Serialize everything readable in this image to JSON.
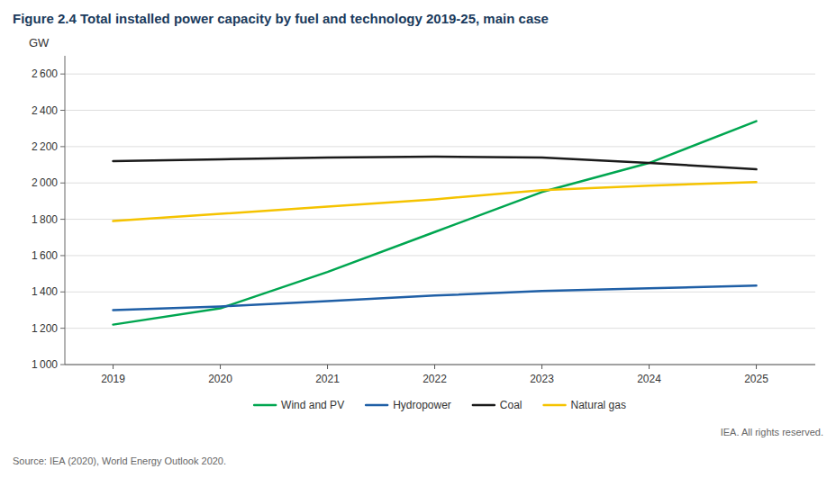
{
  "chart_data": {
    "type": "line",
    "title": "Figure 2.4   Total installed power capacity by fuel and technology 2019-25, main case",
    "y_label": "GW",
    "x": [
      2019,
      2020,
      2021,
      2022,
      2023,
      2024,
      2025
    ],
    "xlim": [
      2018.55,
      2025.55
    ],
    "xticks": [
      2019,
      2020,
      2021,
      2022,
      2023,
      2024,
      2025
    ],
    "ylim": [
      1000,
      2700
    ],
    "yticks": [
      {
        "value": 1000,
        "label": "1 000"
      },
      {
        "value": 1200,
        "label": "1 200"
      },
      {
        "value": 1400,
        "label": "1 400"
      },
      {
        "value": 1600,
        "label": "1 600"
      },
      {
        "value": 1800,
        "label": "1 800"
      },
      {
        "value": 2000,
        "label": "2 000"
      },
      {
        "value": 2200,
        "label": "2 200"
      },
      {
        "value": 2400,
        "label": "2 400"
      },
      {
        "value": 2600,
        "label": "2 600"
      }
    ],
    "grid": true,
    "legend": "bottom",
    "series": [
      {
        "name": "Wind and PV",
        "color": "#00A650",
        "values": [
          1220,
          1310,
          1510,
          1730,
          1950,
          2110,
          2340
        ]
      },
      {
        "name": "Hydropower",
        "color": "#1F5FA6",
        "values": [
          1300,
          1320,
          1350,
          1380,
          1405,
          1420,
          1435
        ]
      },
      {
        "name": "Coal",
        "color": "#1A1A1A",
        "values": [
          2120,
          2130,
          2140,
          2145,
          2140,
          2110,
          2075
        ]
      },
      {
        "name": "Natural gas",
        "color": "#F5C300",
        "values": [
          1790,
          1830,
          1870,
          1910,
          1960,
          1985,
          2005
        ]
      }
    ],
    "annotations": [
      "IEA. All rights reserved.",
      "Source: IEA (2020), World Energy Outlook 2020."
    ]
  }
}
